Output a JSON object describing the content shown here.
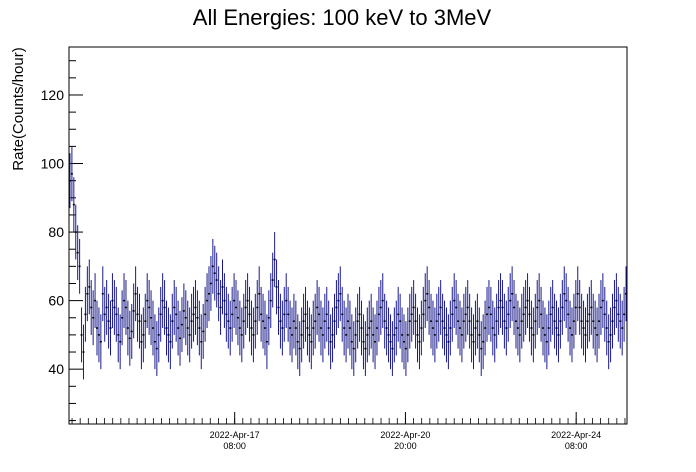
{
  "chart_data": {
    "type": "scatter",
    "title": "All Energies:  100 keV to 3MeV",
    "xlabel": "",
    "ylabel": "Rate(Counts/hour)",
    "x_range": [
      "2022-Apr-13 22:30",
      "2022-Apr-25 09:00"
    ],
    "ylim": [
      24,
      134
    ],
    "y_ticks": [
      40,
      60,
      80,
      100,
      120
    ],
    "x_ticks": [
      {
        "date": "2022-Apr-17",
        "time": "08:00"
      },
      {
        "date": "2022-Apr-20",
        "time": "20:00"
      },
      {
        "date": "2022-Apr-24",
        "time": "08:00"
      }
    ],
    "grid": false,
    "legend": "none",
    "marker": "point with vertical error bar",
    "error_bar_halfwidth": 8,
    "colors": {
      "error_bar": "#1a1a8c",
      "marker": "#000000",
      "axes": "#000000"
    },
    "series": [
      {
        "values": [
          95,
          97,
          88,
          80,
          74,
          70,
          50,
          45,
          56,
          62,
          64,
          58,
          55,
          60,
          52,
          50,
          48,
          62,
          56,
          58,
          54,
          52,
          60,
          58,
          56,
          50,
          48,
          55,
          60,
          58,
          52,
          49,
          51,
          57,
          62,
          56,
          54,
          48,
          50,
          54,
          60,
          58,
          55,
          52,
          48,
          46,
          50,
          56,
          60,
          58,
          52,
          50,
          48,
          54,
          58,
          56,
          52,
          49,
          53,
          57,
          55,
          52,
          50,
          54,
          56,
          58,
          55,
          52,
          48,
          51,
          56,
          60,
          62,
          65,
          70,
          68,
          66,
          62,
          58,
          64,
          60,
          56,
          54,
          52,
          56,
          60,
          58,
          55,
          52,
          50,
          54,
          58,
          60,
          56,
          52,
          50,
          54,
          58,
          62,
          56,
          54,
          52,
          48,
          55,
          60,
          66,
          72,
          64,
          58,
          54,
          52,
          56,
          60,
          56,
          52,
          50,
          54,
          52,
          48,
          46,
          50,
          54,
          56,
          52,
          50,
          48,
          52,
          54,
          58,
          56,
          52,
          50,
          54,
          56,
          52,
          48,
          50,
          54,
          58,
          60,
          62,
          56,
          52,
          50,
          54,
          52,
          48,
          46,
          50,
          54,
          56,
          52,
          48,
          46,
          50,
          52,
          54,
          50,
          48,
          52,
          56,
          58,
          60,
          54,
          52,
          50,
          48,
          46,
          50,
          52,
          56,
          54,
          50,
          48,
          46,
          50,
          54,
          56,
          58,
          54,
          50,
          48,
          52,
          56,
          60,
          62,
          58,
          54,
          52,
          50,
          54,
          56,
          58,
          54,
          52,
          50,
          48,
          52,
          56,
          60,
          58,
          54,
          52,
          50,
          54,
          56,
          58,
          54,
          50,
          48,
          52,
          54,
          50,
          46,
          48,
          52,
          56,
          58,
          56,
          52,
          50,
          54,
          58,
          60,
          58,
          54,
          52,
          56,
          60,
          62,
          58,
          54,
          52,
          50,
          54,
          56,
          58,
          60,
          56,
          52,
          50,
          54,
          58,
          60,
          56,
          52,
          50,
          48,
          52,
          56,
          58,
          54,
          52,
          50,
          54,
          58,
          62,
          60,
          56,
          52,
          50,
          54,
          58,
          62,
          58,
          54,
          52,
          50,
          54,
          56,
          58,
          54,
          52,
          50,
          54,
          58,
          60,
          56,
          52,
          48,
          50,
          54,
          58,
          60,
          56,
          54,
          52,
          56,
          62
        ]
      }
    ]
  }
}
